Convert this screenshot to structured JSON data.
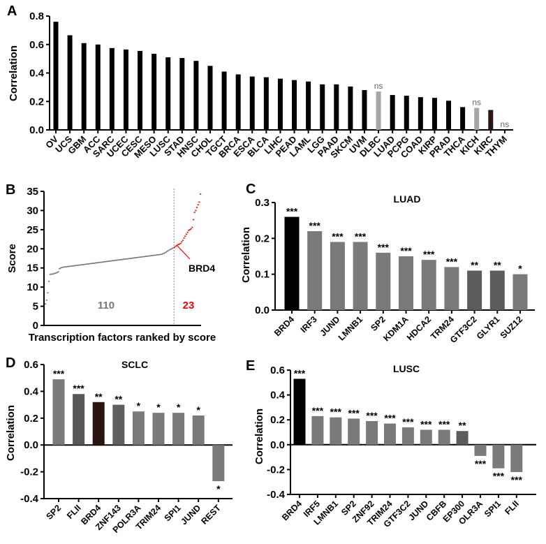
{
  "chart_data": [
    {
      "panel": "A",
      "type": "bar",
      "title": "",
      "ylabel": "Correlation",
      "ylim": [
        0,
        0.8
      ],
      "yticks": [
        0.0,
        0.2,
        0.4,
        0.6,
        0.8
      ],
      "categories": [
        "OV",
        "UCS",
        "GBM",
        "ACC",
        "SARC",
        "UCEC",
        "CESC",
        "MESO",
        "LUSC",
        "STAD",
        "HNSC",
        "CHOL",
        "TGCT",
        "BRCA",
        "ESCA",
        "BLCA",
        "LIHC",
        "PEAD",
        "LAML",
        "LGG",
        "PAAD",
        "SKCM",
        "UVM",
        "DLBC",
        "LUAD",
        "PCPG",
        "COAD",
        "KIRP",
        "PRAD",
        "THCA",
        "KICH",
        "KIRC",
        "THYM"
      ],
      "values": [
        0.76,
        0.665,
        0.61,
        0.6,
        0.575,
        0.565,
        0.555,
        0.535,
        0.51,
        0.505,
        0.485,
        0.45,
        0.41,
        0.39,
        0.375,
        0.37,
        0.36,
        0.35,
        0.34,
        0.32,
        0.32,
        0.305,
        0.28,
        0.27,
        0.245,
        0.24,
        0.23,
        0.225,
        0.205,
        0.16,
        0.155,
        0.14,
        0.0
      ],
      "significance": [
        null,
        null,
        null,
        null,
        null,
        null,
        null,
        null,
        null,
        null,
        null,
        null,
        null,
        null,
        null,
        null,
        null,
        null,
        null,
        null,
        null,
        null,
        null,
        "ns",
        null,
        null,
        null,
        null,
        null,
        null,
        "ns",
        null,
        "ns"
      ],
      "colors": [
        "#000000",
        "#000000",
        "#000000",
        "#000000",
        "#000000",
        "#000000",
        "#000000",
        "#000000",
        "#000000",
        "#000000",
        "#000000",
        "#000000",
        "#000000",
        "#000000",
        "#000000",
        "#000000",
        "#000000",
        "#000000",
        "#000000",
        "#000000",
        "#000000",
        "#000000",
        "#000000",
        "#a6a6a6",
        "#000000",
        "#000000",
        "#000000",
        "#000000",
        "#000000",
        "#000000",
        "#a6a6a6",
        "#2b1511",
        "#000000"
      ]
    },
    {
      "panel": "B",
      "type": "scatter",
      "xlabel": "Transcription factors ranked by score",
      "ylabel": "Score",
      "ylim": [
        0,
        35
      ],
      "yticks": [
        0,
        5,
        10,
        15,
        20,
        25,
        30,
        35
      ],
      "threshold_rank": 110,
      "group_counts": [
        {
          "label": "110",
          "color": "#777777"
        },
        {
          "label": "23",
          "color": "#ff0000"
        }
      ],
      "annotation": {
        "label": "BRD4",
        "rank": 113,
        "color": "#ff0000"
      },
      "values": [
        5.6,
        6.6,
        8.5,
        11.5,
        13.3,
        13.4,
        13.4,
        13.5,
        13.6,
        13.7,
        13.8,
        14.0,
        14.8,
        15.0,
        15.1,
        15.2,
        15.24,
        15.28,
        15.32,
        15.36,
        15.4,
        15.44,
        15.48,
        15.52,
        15.56,
        15.6,
        15.64,
        15.68,
        15.72,
        15.76,
        15.8,
        15.84,
        15.88,
        15.92,
        15.96,
        16.0,
        16.04,
        16.08,
        16.12,
        16.16,
        16.2,
        16.24,
        16.28,
        16.32,
        16.36,
        16.4,
        16.44,
        16.48,
        16.52,
        16.56,
        16.6,
        16.64,
        16.68,
        16.72,
        16.76,
        16.8,
        16.84,
        16.88,
        16.92,
        16.96,
        17.0,
        17.04,
        17.08,
        17.12,
        17.16,
        17.2,
        17.24,
        17.28,
        17.32,
        17.36,
        17.4,
        17.44,
        17.48,
        17.52,
        17.56,
        17.6,
        17.64,
        17.68,
        17.72,
        17.76,
        17.8,
        17.84,
        17.88,
        17.92,
        17.96,
        18.0,
        18.04,
        18.08,
        18.12,
        18.16,
        18.2,
        18.24,
        18.28,
        18.32,
        18.36,
        18.4,
        18.44,
        18.48,
        18.52,
        18.56,
        18.7,
        18.85,
        19.0,
        19.2,
        19.4,
        19.6,
        19.8,
        19.95,
        20.1,
        20.25,
        20.4,
        20.7,
        20.9,
        21.1,
        21.2,
        21.4,
        21.8,
        22.2,
        22.8,
        23.3,
        23.8,
        24.3,
        24.8,
        25.0,
        25.2,
        25.6,
        27.6,
        29.5,
        30.0,
        30.8,
        31.5,
        32.2,
        34.3
      ],
      "colors": {
        "below": "#777777",
        "above": "#ff0000"
      }
    },
    {
      "panel": "C",
      "type": "bar",
      "title": "LUAD",
      "ylabel": "Correlation",
      "ylim": [
        0,
        0.3
      ],
      "yticks": [
        0.0,
        0.1,
        0.2,
        0.3
      ],
      "categories": [
        "BRD4",
        "IRF3",
        "JUND",
        "LMNB1",
        "SP2",
        "KDM1A",
        "HDCA2",
        "TRM24",
        "GTF3C2",
        "GLYR1",
        "SUZ12"
      ],
      "values": [
        0.26,
        0.22,
        0.19,
        0.19,
        0.16,
        0.15,
        0.14,
        0.12,
        0.11,
        0.11,
        0.1
      ],
      "significance": [
        "***",
        "***",
        "***",
        "***",
        "***",
        "***",
        "***",
        "***",
        "**",
        "**",
        "*"
      ],
      "colors": [
        "#000000",
        "#7a7a7a",
        "#7a7a7a",
        "#7a7a7a",
        "#7a7a7a",
        "#7a7a7a",
        "#7a7a7a",
        "#7a7a7a",
        "#5c5c5c",
        "#5c5c5c",
        "#7a7a7a"
      ]
    },
    {
      "panel": "D",
      "type": "bar",
      "title": "SCLC",
      "ylabel": "Correlation",
      "ylim": [
        -0.4,
        0.6
      ],
      "yticks": [
        -0.4,
        -0.2,
        0.0,
        0.2,
        0.4,
        0.6
      ],
      "categories": [
        "SP2",
        "FLII",
        "BRD4",
        "ZNF143",
        "POLR3A",
        "TRIM24",
        "SPI1",
        "JUND",
        "REST"
      ],
      "values": [
        0.49,
        0.38,
        0.32,
        0.3,
        0.25,
        0.24,
        0.24,
        0.22,
        -0.27
      ],
      "significance": [
        "***",
        "***",
        "**",
        "**",
        "*",
        "*",
        "*",
        "*",
        "*"
      ],
      "colors": [
        "#7a7a7a",
        "#575757",
        "#2b1511",
        "#5f5f5f",
        "#7a7a7a",
        "#7a7a7a",
        "#7a7a7a",
        "#7a7a7a",
        "#7a7a7a"
      ]
    },
    {
      "panel": "E",
      "type": "bar",
      "title": "LUSC",
      "ylabel": "Correlation",
      "ylim": [
        -0.4,
        0.6
      ],
      "yticks": [
        -0.4,
        -0.2,
        0.0,
        0.2,
        0.4,
        0.6
      ],
      "categories": [
        "BRD4",
        "IRF5",
        "LMNB1",
        "SP2",
        "ZNF92",
        "TRIM24",
        "GTF3C2",
        "JUND",
        "CBFB",
        "EP300",
        "OLR3A",
        "SPI1",
        "FLII"
      ],
      "values": [
        0.53,
        0.23,
        0.22,
        0.21,
        0.19,
        0.17,
        0.14,
        0.12,
        0.12,
        0.11,
        -0.09,
        -0.19,
        -0.22
      ],
      "significance": [
        "***",
        "***",
        "***",
        "***",
        "***",
        "***",
        "***",
        "***",
        "***",
        "**",
        "***",
        "***",
        "***"
      ],
      "colors": [
        "#000000",
        "#7a7a7a",
        "#7a7a7a",
        "#7a7a7a",
        "#7a7a7a",
        "#7a7a7a",
        "#7a7a7a",
        "#7a7a7a",
        "#7a7a7a",
        "#5c5c5c",
        "#7a7a7a",
        "#7a7a7a",
        "#7a7a7a"
      ]
    }
  ]
}
